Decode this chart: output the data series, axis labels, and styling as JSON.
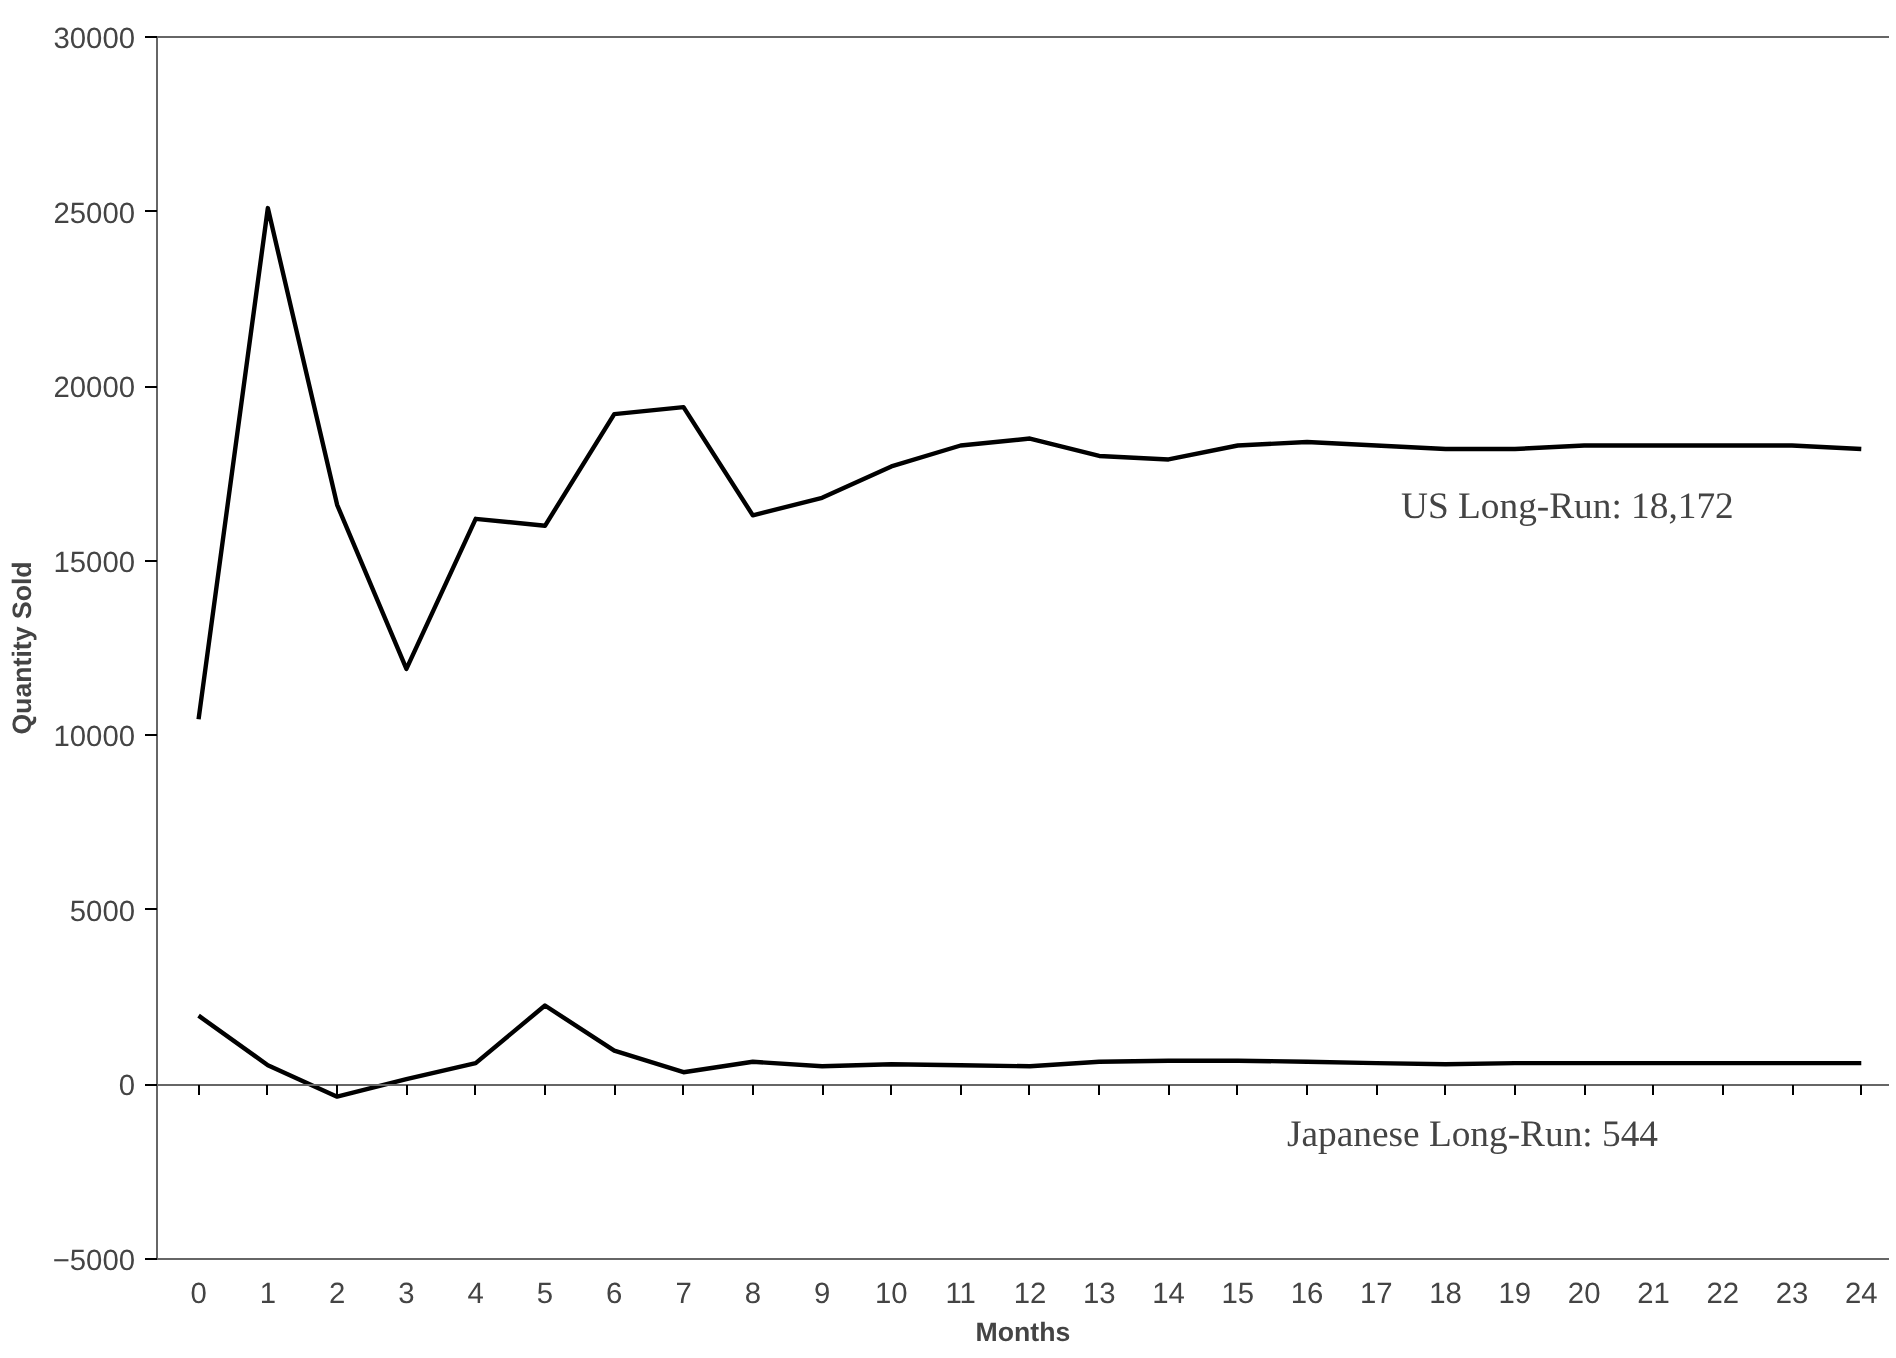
{
  "chart_data": {
    "type": "line",
    "xlabel": "Months",
    "ylabel": "Quantity Sold",
    "x": [
      0,
      1,
      2,
      3,
      4,
      5,
      6,
      7,
      8,
      9,
      10,
      11,
      12,
      13,
      14,
      15,
      16,
      17,
      18,
      19,
      20,
      21,
      22,
      23,
      24
    ],
    "series": [
      {
        "color": "#000000",
        "values": [
          10460,
          25100,
          16600,
          11900,
          16200,
          16000,
          19200,
          19400,
          16300,
          16800,
          17700,
          18300,
          18500,
          18000,
          17900,
          18300,
          18400,
          18300,
          18200,
          18200,
          18300,
          18300,
          18300,
          18300,
          18200
        ]
      },
      {
        "color": "#000000",
        "values": [
          1970,
          550,
          -350,
          150,
          610,
          2260,
          970,
          350,
          650,
          520,
          580,
          550,
          520,
          650,
          680,
          680,
          650,
          610,
          580,
          610,
          610,
          610,
          610,
          610,
          610
        ]
      }
    ],
    "xlim": [
      -0.6,
      24.4
    ],
    "ylim": [
      -5000,
      30000
    ],
    "xticks": [
      0,
      1,
      2,
      3,
      4,
      5,
      6,
      7,
      8,
      9,
      10,
      11,
      12,
      13,
      14,
      15,
      16,
      17,
      18,
      19,
      20,
      21,
      22,
      23,
      24
    ],
    "yticks": [
      -5000,
      0,
      5000,
      10000,
      15000,
      20000,
      25000,
      30000
    ],
    "annotations": [
      "US Long-Run: 18,172",
      "Japanese Long-Run: 544"
    ],
    "marker": "none",
    "line_style": "solid"
  }
}
